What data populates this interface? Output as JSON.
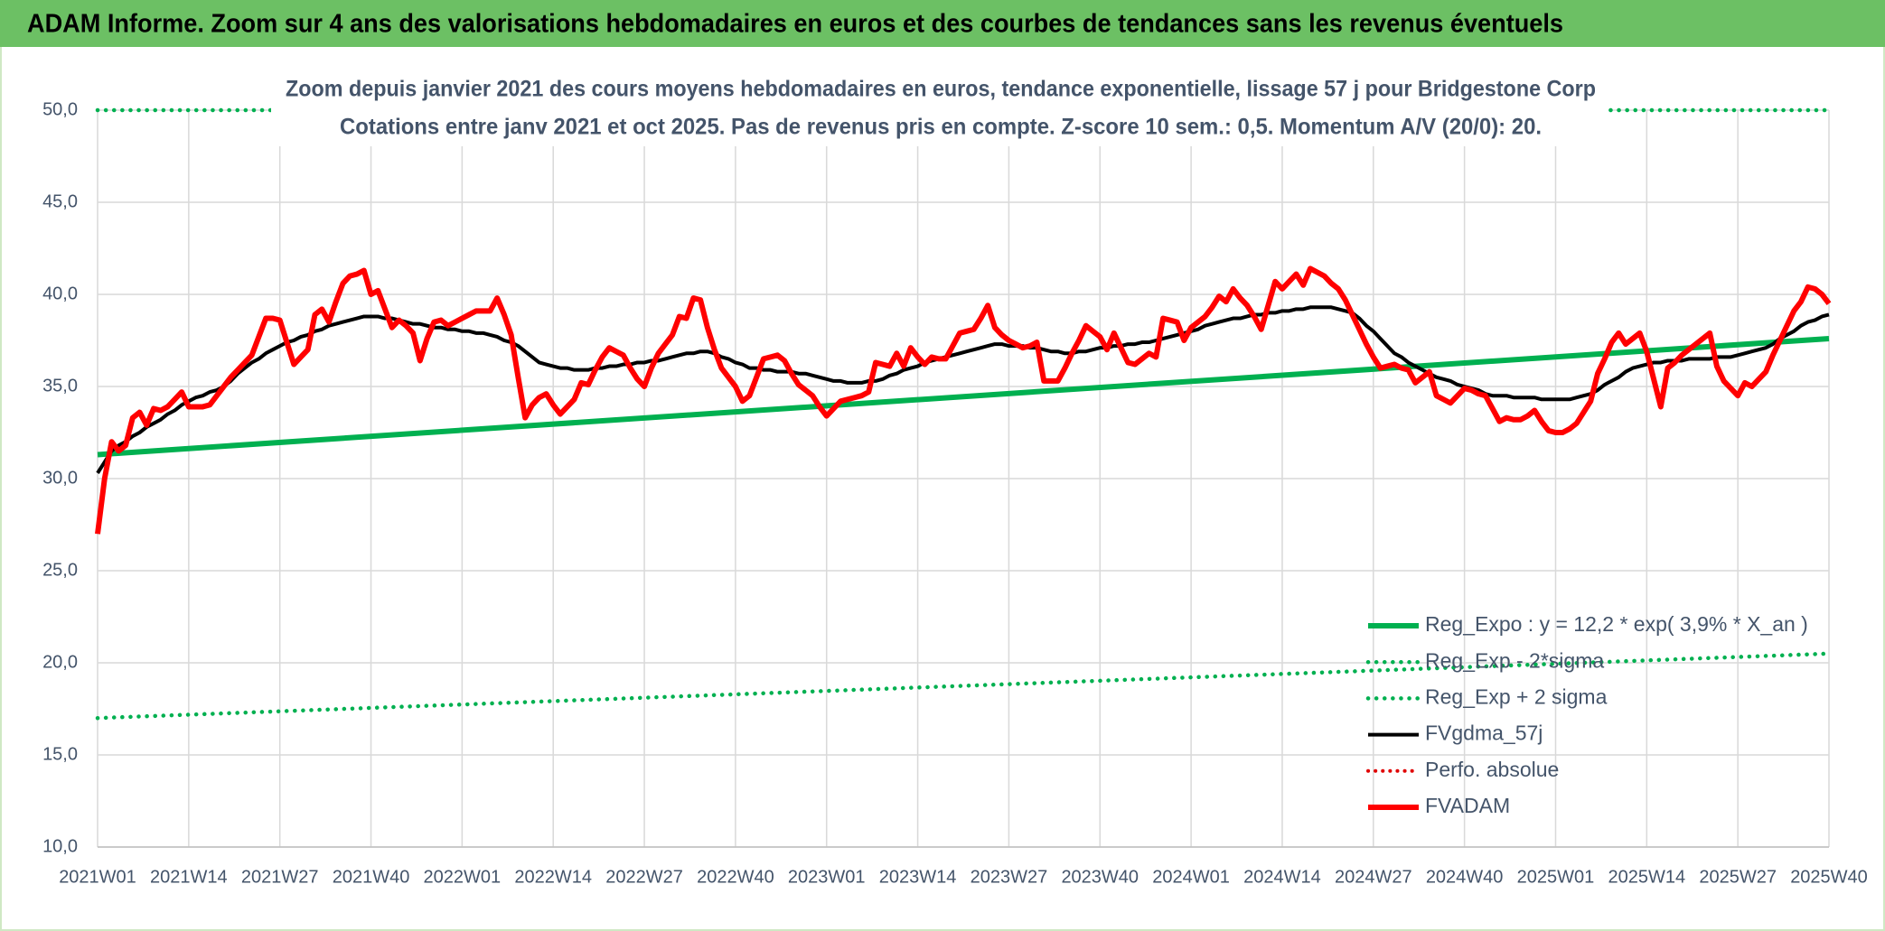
{
  "header": {
    "title": "ADAM Informe. Zoom sur 4 ans des valorisations hebdomadaires en euros et des courbes de tendances sans les revenus éventuels"
  },
  "chart_data": {
    "type": "line",
    "title": "Zoom depuis janvier 2021 des cours moyens hebdomadaires en euros, tendance exponentielle, lissage 57 j pour Bridgestone Corp",
    "subtitle": "Cotations entre janv 2021 et oct 2025. Pas de revenus pris en compte. Z-score 10 sem.: 0,5. Momentum A/V (20/0): 20.",
    "categories": [
      "2021W01",
      null,
      null,
      null,
      null,
      null,
      null,
      null,
      null,
      null,
      null,
      null,
      null,
      "2021W14",
      null,
      null,
      null,
      null,
      null,
      null,
      null,
      null,
      null,
      null,
      null,
      null,
      "2021W27",
      null,
      null,
      null,
      null,
      null,
      null,
      null,
      null,
      null,
      null,
      null,
      null,
      "2021W40",
      null,
      null,
      null,
      null,
      null,
      null,
      null,
      null,
      null,
      null,
      null,
      null,
      "2022W01",
      null,
      null,
      null,
      null,
      null,
      null,
      null,
      null,
      null,
      null,
      null,
      null,
      "2022W14",
      null,
      null,
      null,
      null,
      null,
      null,
      null,
      null,
      null,
      null,
      null,
      null,
      "2022W27",
      null,
      null,
      null,
      null,
      null,
      null,
      null,
      null,
      null,
      null,
      null,
      null,
      "2022W40",
      null,
      null,
      null,
      null,
      null,
      null,
      null,
      null,
      null,
      null,
      null,
      null,
      "2023W01",
      null,
      null,
      null,
      null,
      null,
      null,
      null,
      null,
      null,
      null,
      null,
      null,
      "2023W14",
      null,
      null,
      null,
      null,
      null,
      null,
      null,
      null,
      null,
      null,
      null,
      null,
      "2023W27",
      null,
      null,
      null,
      null,
      null,
      null,
      null,
      null,
      null,
      null,
      null,
      null,
      "2023W40",
      null,
      null,
      null,
      null,
      null,
      null,
      null,
      null,
      null,
      null,
      null,
      null,
      "2024W01",
      null,
      null,
      null,
      null,
      null,
      null,
      null,
      null,
      null,
      null,
      null,
      null,
      "2024W14",
      null,
      null,
      null,
      null,
      null,
      null,
      null,
      null,
      null,
      null,
      null,
      null,
      "2024W27",
      null,
      null,
      null,
      null,
      null,
      null,
      null,
      null,
      null,
      null,
      null,
      null,
      "2024W40",
      null,
      null,
      null,
      null,
      null,
      null,
      null,
      null,
      null,
      null,
      null,
      null,
      "2025W01",
      null,
      null,
      null,
      null,
      null,
      null,
      null,
      null,
      null,
      null,
      null,
      null,
      "2025W14",
      null,
      null,
      null,
      null,
      null,
      null,
      null,
      null,
      null,
      null,
      null,
      null,
      "2025W27",
      null,
      null,
      null,
      null,
      null,
      null,
      null,
      null,
      null,
      null,
      null,
      null,
      "2025W40"
    ],
    "ylim": [
      10,
      50
    ],
    "yticks": [
      {
        "value": 10,
        "label": "10,0"
      },
      {
        "value": 15,
        "label": "15,0"
      },
      {
        "value": 20,
        "label": "20,0"
      },
      {
        "value": 25,
        "label": "25,0"
      },
      {
        "value": 30,
        "label": "30,0"
      },
      {
        "value": 35,
        "label": "35,0"
      },
      {
        "value": 40,
        "label": "40,0"
      },
      {
        "value": 45,
        "label": "45,0"
      },
      {
        "value": 50,
        "label": "50,0"
      }
    ],
    "grid": true,
    "legend": "lower right",
    "series": [
      {
        "name": "Reg_Expo : y = 12,2 * exp( 3,9% *  X_an )",
        "color": "#00b050",
        "style": "solid",
        "width": 6,
        "endpoints": [
          31.3,
          37.6
        ]
      },
      {
        "name": "Reg_Exp - 2*sigma",
        "color": "#00b050",
        "style": "dotted",
        "width": 4.5,
        "endpoints": [
          17.0,
          20.5
        ]
      },
      {
        "name": "Reg_Exp + 2 sigma",
        "color": "#00b050",
        "style": "dotted",
        "width": 4.5,
        "endpoints": [
          50.0,
          50.0
        ]
      },
      {
        "name": "FVgdma_57j",
        "color": "#000000",
        "style": "solid",
        "width": 4,
        "values": [
          30.3,
          30.9,
          31.5,
          31.8,
          32.0,
          32.3,
          32.5,
          32.8,
          33.0,
          33.2,
          33.5,
          33.7,
          34.0,
          34.2,
          34.4,
          34.5,
          34.7,
          34.8,
          35.0,
          35.3,
          35.7,
          36.0,
          36.3,
          36.5,
          36.8,
          37.0,
          37.2,
          37.4,
          37.5,
          37.7,
          37.8,
          38.0,
          38.1,
          38.3,
          38.4,
          38.5,
          38.6,
          38.7,
          38.8,
          38.8,
          38.8,
          38.7,
          38.7,
          38.6,
          38.5,
          38.4,
          38.4,
          38.3,
          38.2,
          38.2,
          38.1,
          38.1,
          38.0,
          38.0,
          37.9,
          37.9,
          37.8,
          37.7,
          37.5,
          37.4,
          37.2,
          36.9,
          36.6,
          36.3,
          36.2,
          36.1,
          36.0,
          36.0,
          35.9,
          35.9,
          35.9,
          36.0,
          36.0,
          36.1,
          36.1,
          36.2,
          36.2,
          36.3,
          36.3,
          36.4,
          36.4,
          36.5,
          36.6,
          36.7,
          36.8,
          36.8,
          36.9,
          36.9,
          36.8,
          36.6,
          36.5,
          36.3,
          36.2,
          36.0,
          36.0,
          35.9,
          35.9,
          35.8,
          35.8,
          35.8,
          35.7,
          35.7,
          35.6,
          35.5,
          35.4,
          35.3,
          35.3,
          35.2,
          35.2,
          35.2,
          35.3,
          35.3,
          35.4,
          35.6,
          35.7,
          35.9,
          36.0,
          36.1,
          36.3,
          36.4,
          36.5,
          36.6,
          36.7,
          36.8,
          36.9,
          37.0,
          37.1,
          37.2,
          37.3,
          37.3,
          37.2,
          37.2,
          37.2,
          37.1,
          37.1,
          37.0,
          36.9,
          36.9,
          36.8,
          36.8,
          36.9,
          36.9,
          37.0,
          37.1,
          37.1,
          37.2,
          37.2,
          37.3,
          37.3,
          37.4,
          37.4,
          37.5,
          37.6,
          37.7,
          37.8,
          37.9,
          38.0,
          38.1,
          38.3,
          38.4,
          38.5,
          38.6,
          38.7,
          38.7,
          38.8,
          38.9,
          38.9,
          39.0,
          39.0,
          39.1,
          39.1,
          39.2,
          39.2,
          39.3,
          39.3,
          39.3,
          39.3,
          39.2,
          39.1,
          39.0,
          38.7,
          38.3,
          38.0,
          37.6,
          37.2,
          36.8,
          36.6,
          36.3,
          36.1,
          35.9,
          35.7,
          35.5,
          35.4,
          35.3,
          35.1,
          35.0,
          34.9,
          34.8,
          34.6,
          34.5,
          34.5,
          34.5,
          34.4,
          34.4,
          34.4,
          34.4,
          34.3,
          34.3,
          34.3,
          34.3,
          34.3,
          34.4,
          34.5,
          34.6,
          34.8,
          35.1,
          35.3,
          35.5,
          35.8,
          36.0,
          36.1,
          36.2,
          36.3,
          36.3,
          36.4,
          36.4,
          36.4,
          36.5,
          36.5,
          36.5,
          36.5,
          36.6,
          36.6,
          36.6,
          36.7,
          36.8,
          36.9,
          37.0,
          37.1,
          37.3,
          37.6,
          37.8,
          38.0,
          38.3,
          38.5,
          38.6,
          38.8,
          38.9
        ]
      },
      {
        "name": "Perfo. absolue",
        "color": "#e00000",
        "style": "dotted",
        "width": 4
      },
      {
        "name": "FVADAM",
        "color": "#ff0000",
        "style": "solid",
        "width": 6,
        "values": [
          27.0,
          30.0,
          32.0,
          31.5,
          31.8,
          33.3,
          33.6,
          32.9,
          33.8,
          33.7,
          33.9,
          34.3,
          34.7,
          33.9,
          33.9,
          33.9,
          34.0,
          34.5,
          35.0,
          35.5,
          35.9,
          36.3,
          36.7,
          37.7,
          38.7,
          38.7,
          38.6,
          37.4,
          36.2,
          36.6,
          37.0,
          38.9,
          39.2,
          38.5,
          39.6,
          40.6,
          41.0,
          41.1,
          41.3,
          40.0,
          40.2,
          39.2,
          38.2,
          38.6,
          38.3,
          37.9,
          36.4,
          37.6,
          38.5,
          38.6,
          38.3,
          38.5,
          38.7,
          38.9,
          39.1,
          39.1,
          39.1,
          39.8,
          38.9,
          37.8,
          35.5,
          33.3,
          34.0,
          34.4,
          34.6,
          34.0,
          33.5,
          33.9,
          34.3,
          35.2,
          35.1,
          35.9,
          36.6,
          37.1,
          36.9,
          36.7,
          36.0,
          35.4,
          35.0,
          36.0,
          36.8,
          37.3,
          37.8,
          38.8,
          38.7,
          39.8,
          39.7,
          38.2,
          37.0,
          36.0,
          35.5,
          35.0,
          34.2,
          34.5,
          35.5,
          36.5,
          36.6,
          36.7,
          36.4,
          35.7,
          35.1,
          34.8,
          34.5,
          33.9,
          33.4,
          33.8,
          34.2,
          34.3,
          34.4,
          34.5,
          34.7,
          36.3,
          36.2,
          36.1,
          36.8,
          36.1,
          37.1,
          36.6,
          36.2,
          36.6,
          36.5,
          36.5,
          37.2,
          37.9,
          38.0,
          38.1,
          38.7,
          39.4,
          38.2,
          37.8,
          37.5,
          37.3,
          37.1,
          37.2,
          37.4,
          35.3,
          35.3,
          35.3,
          36.0,
          36.8,
          37.5,
          38.3,
          38.0,
          37.7,
          37.0,
          37.9,
          37.1,
          36.3,
          36.2,
          36.5,
          36.8,
          36.6,
          38.7,
          38.6,
          38.5,
          37.5,
          38.2,
          38.5,
          38.8,
          39.3,
          39.9,
          39.6,
          40.3,
          39.8,
          39.4,
          38.8,
          38.1,
          39.4,
          40.7,
          40.3,
          40.7,
          41.1,
          40.5,
          41.4,
          41.2,
          41.0,
          40.6,
          40.3,
          39.7,
          38.9,
          38.1,
          37.3,
          36.6,
          36.0,
          36.1,
          36.2,
          36.0,
          35.9,
          35.2,
          35.5,
          35.8,
          34.5,
          34.3,
          34.1,
          34.5,
          34.9,
          34.8,
          34.6,
          34.5,
          33.8,
          33.1,
          33.3,
          33.2,
          33.2,
          33.4,
          33.7,
          33.1,
          32.6,
          32.5,
          32.5,
          32.7,
          33.0,
          33.6,
          34.2,
          35.7,
          36.5,
          37.4,
          37.9,
          37.3,
          37.6,
          37.9,
          36.9,
          35.4,
          33.9,
          36.0,
          36.3,
          36.7,
          37.0,
          37.3,
          37.6,
          37.9,
          36.1,
          35.3,
          34.9,
          34.5,
          35.2,
          35.0,
          35.4,
          35.8,
          36.7,
          37.5,
          38.3,
          39.1,
          39.6,
          40.4,
          40.3,
          40.0,
          39.5
        ]
      }
    ]
  }
}
